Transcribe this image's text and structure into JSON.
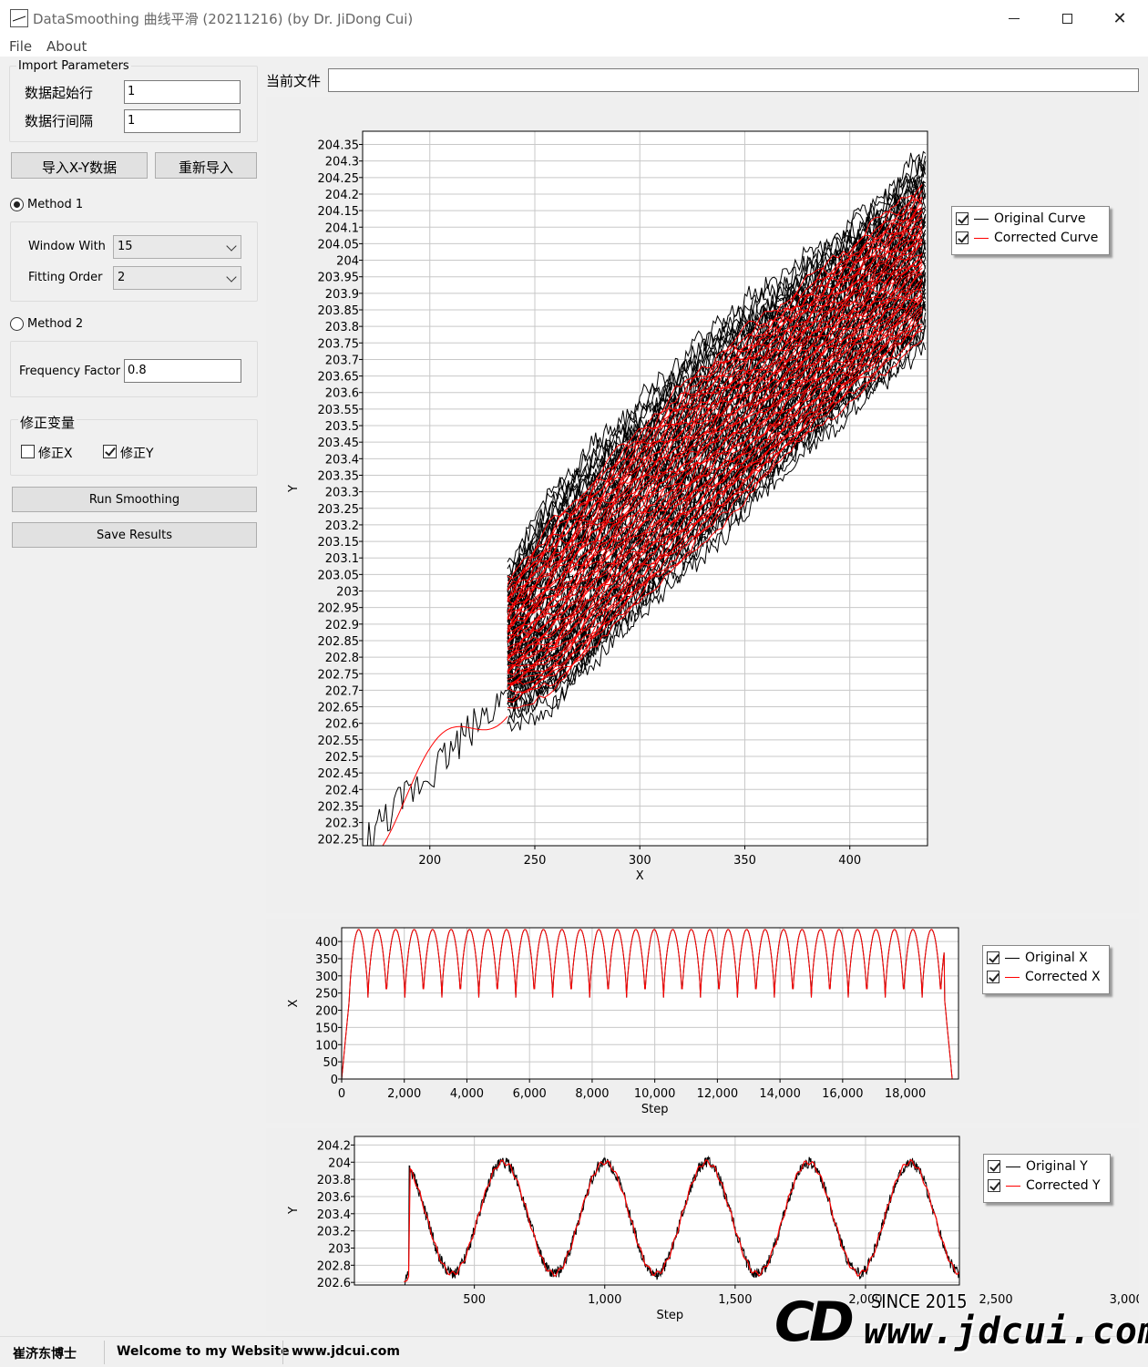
{
  "window": {
    "title": "DataSmoothing 曲线平滑 (20211216) (by Dr. JiDong Cui)",
    "minimize_icon": "minimize-icon",
    "maximize_icon": "maximize-icon",
    "close_icon": "close-icon"
  },
  "menu": {
    "file": "File",
    "about": "About"
  },
  "import": {
    "group_title": "Import Parameters",
    "start_row_label": "数据起始行",
    "start_row_value": "1",
    "row_interval_label": "数据行间隔",
    "row_interval_value": "1",
    "import_button": "导入X-Y数据",
    "reimport_button": "重新导入"
  },
  "method1": {
    "label": "Method 1",
    "selected": true,
    "window_label": "Window With",
    "window_value": "15",
    "order_label": "Fitting Order",
    "order_value": "2"
  },
  "method2": {
    "label": "Method 2",
    "selected": false,
    "freq_label": "Frequency Factor",
    "freq_value": "0.8"
  },
  "correct": {
    "group_title": "修正变量",
    "x_label": "修正X",
    "x_checked": false,
    "y_label": "修正Y",
    "y_checked": true
  },
  "actions": {
    "run": "Run Smoothing",
    "save": "Save Results"
  },
  "current_file": {
    "label": "当前文件",
    "value": ""
  },
  "colors": {
    "original": "#000000",
    "corrected": "#ff0000"
  },
  "chart_data": [
    {
      "type": "line",
      "xlabel": "X",
      "ylabel": "Y",
      "xlim": [
        168,
        437
      ],
      "ylim": [
        202.23,
        204.39
      ],
      "x_ticks": [
        "200",
        "250",
        "300",
        "350",
        "400"
      ],
      "y_ticks": [
        "204.35",
        "204.3",
        "204.25",
        "204.2",
        "204.15",
        "204.1",
        "204.05",
        "204",
        "203.95",
        "203.9",
        "203.85",
        "203.8",
        "203.75",
        "203.7",
        "203.65",
        "203.6",
        "203.55",
        "203.5",
        "203.45",
        "203.4",
        "203.35",
        "203.3",
        "203.25",
        "203.2",
        "203.15",
        "203.1",
        "203.05",
        "203",
        "202.95",
        "202.9",
        "202.85",
        "202.8",
        "202.75",
        "202.7",
        "202.65",
        "202.6",
        "202.55",
        "202.5",
        "202.45",
        "202.4",
        "202.35",
        "202.3",
        "202.25"
      ],
      "series": [
        {
          "name": "Original Curve",
          "band": {
            "x": [
              237,
              260,
              300,
              340,
              380,
              420,
              436
            ],
            "y_low": [
              202.63,
              202.68,
              202.95,
              203.2,
              203.45,
              203.68,
              203.78
            ],
            "y_high": [
              203.05,
              203.3,
              203.55,
              203.8,
              203.98,
              204.2,
              204.3
            ]
          }
        },
        {
          "name": "Corrected Curve",
          "band": {
            "x": [
              237,
              260,
              300,
              340,
              380,
              420,
              436
            ],
            "y_low": [
              202.67,
              202.72,
              202.98,
              203.23,
              203.48,
              203.7,
              203.8
            ],
            "y_high": [
              203.02,
              203.2,
              203.48,
              203.72,
              203.92,
              204.14,
              204.22
            ]
          }
        }
      ]
    },
    {
      "type": "line",
      "xlabel": "Step",
      "ylabel": "X",
      "xlim": [
        0,
        19700
      ],
      "ylim": [
        0,
        440
      ],
      "x_ticks": [
        "0",
        "2,000",
        "4,000",
        "6,000",
        "8,000",
        "10,000",
        "12,000",
        "14,000",
        "16,000",
        "18,000"
      ],
      "y_ticks": [
        "400",
        "350",
        "300",
        "250",
        "200",
        "150",
        "100",
        "50",
        "0"
      ],
      "series": [
        {
          "name": "Original X",
          "period": 590,
          "min": 237,
          "max": 435
        },
        {
          "name": "Corrected X",
          "period": 590,
          "min": 237,
          "max": 435
        }
      ]
    },
    {
      "type": "line",
      "xlabel": "Step",
      "ylabel": "Y",
      "xlim": [
        40,
        2360
      ],
      "ylim": [
        202.57,
        204.3
      ],
      "x_ticks": [
        "500",
        "1,000",
        "1,500",
        "2,000",
        "2,500",
        "3,000"
      ],
      "y_ticks": [
        "204.2",
        "204",
        "203.8",
        "203.6",
        "203.4",
        "203.2",
        "203",
        "202.8",
        "202.6"
      ],
      "series": [
        {
          "name": "Original Y",
          "period": 390,
          "min": 202.7,
          "max": 204.0
        },
        {
          "name": "Corrected Y",
          "period": 390,
          "min": 202.7,
          "max": 203.95
        }
      ]
    }
  ],
  "status": {
    "author": "崔济东博士",
    "welcome": "Welcome to my Website",
    "url": "www.jdcui.com"
  },
  "watermark": {
    "since": "SINCE 2015",
    "url": "www.jdcui.com"
  }
}
